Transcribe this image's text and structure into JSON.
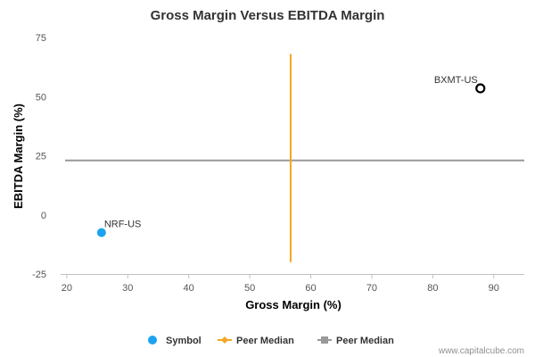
{
  "chart_data": {
    "type": "scatter",
    "title": "Gross Margin Versus EBITDA Margin",
    "xlabel": "Gross Margin (%)",
    "ylabel": "EBITDA Margin (%)",
    "xlim": [
      19,
      95
    ],
    "ylim": [
      -25,
      75
    ],
    "xticks": [
      20,
      30,
      40,
      50,
      60,
      70,
      80,
      90
    ],
    "yticks": [
      -25,
      0,
      25,
      50,
      75
    ],
    "grid": false,
    "points": [
      {
        "label": "NRF-US",
        "x": 25.7,
        "y": -7.5,
        "style": "filled",
        "color": "#1aa3f0"
      },
      {
        "label": "BXMT-US",
        "x": 87.8,
        "y": 53.5,
        "style": "hollow",
        "color": "#000000"
      }
    ],
    "peer_median_x": {
      "name": "Peer Median",
      "value": 56.7,
      "y_range": [
        -20,
        68
      ],
      "color": "#f5a623"
    },
    "peer_median_y": {
      "name": "Peer Median",
      "value": 23,
      "x_range": [
        19,
        95
      ],
      "color": "#999999"
    },
    "legend": {
      "position": "bottom",
      "items": [
        {
          "label": "Symbol",
          "marker": "circle",
          "color": "#1aa3f0"
        },
        {
          "label": "Peer Median",
          "marker": "diamond-line",
          "color": "#f5a623"
        },
        {
          "label": "Peer Median",
          "marker": "square-line",
          "color": "#999999"
        }
      ]
    },
    "credit": "www.capitalcube.com"
  }
}
